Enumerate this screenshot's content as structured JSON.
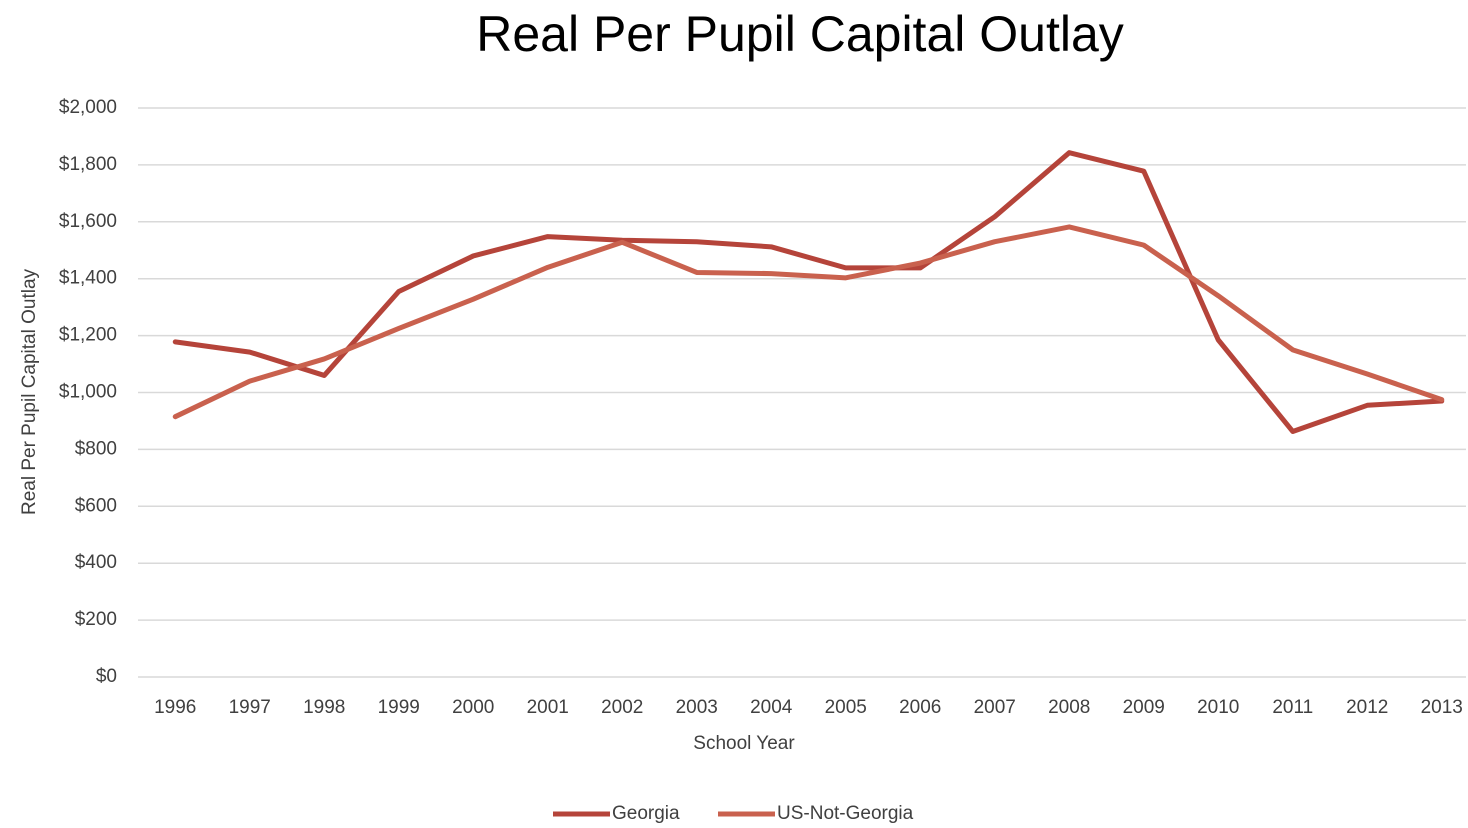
{
  "chart_data": {
    "type": "line",
    "title": "Real Per Pupil Capital Outlay",
    "x_label": "School Year",
    "y_label": "Real Per Pupil Capital Outlay",
    "categories": [
      "1996",
      "1997",
      "1998",
      "1999",
      "2000",
      "2001",
      "2002",
      "2003",
      "2004",
      "2005",
      "2006",
      "2007",
      "2008",
      "2009",
      "2010",
      "2011",
      "2012",
      "2013"
    ],
    "series": [
      {
        "name": "Georgia",
        "color": "#b5443a",
        "values": [
          1178,
          1142,
          1060,
          1355,
          1480,
          1548,
          1535,
          1530,
          1512,
          1438,
          1438,
          1618,
          1843,
          1778,
          1185,
          863,
          955,
          970
        ]
      },
      {
        "name": "US-Not-Georgia",
        "color": "#c9614e",
        "values": [
          915,
          1040,
          1118,
          1225,
          1328,
          1440,
          1528,
          1422,
          1418,
          1403,
          1455,
          1530,
          1582,
          1518,
          1340,
          1150,
          1065,
          975
        ]
      }
    ],
    "ylim": [
      0,
      2000
    ],
    "yticks": [
      {
        "value": 0,
        "label": "$0"
      },
      {
        "value": 200,
        "label": "$200"
      },
      {
        "value": 400,
        "label": "$400"
      },
      {
        "value": 600,
        "label": "$600"
      },
      {
        "value": 800,
        "label": "$800"
      },
      {
        "value": 1000,
        "label": "$1,000"
      },
      {
        "value": 1200,
        "label": "$1,200"
      },
      {
        "value": 1400,
        "label": "$1,400"
      },
      {
        "value": 1600,
        "label": "$1,600"
      },
      {
        "value": 1800,
        "label": "$1,800"
      },
      {
        "value": 2000,
        "label": "$2,000"
      }
    ],
    "grid": true,
    "legend": "bottom"
  }
}
